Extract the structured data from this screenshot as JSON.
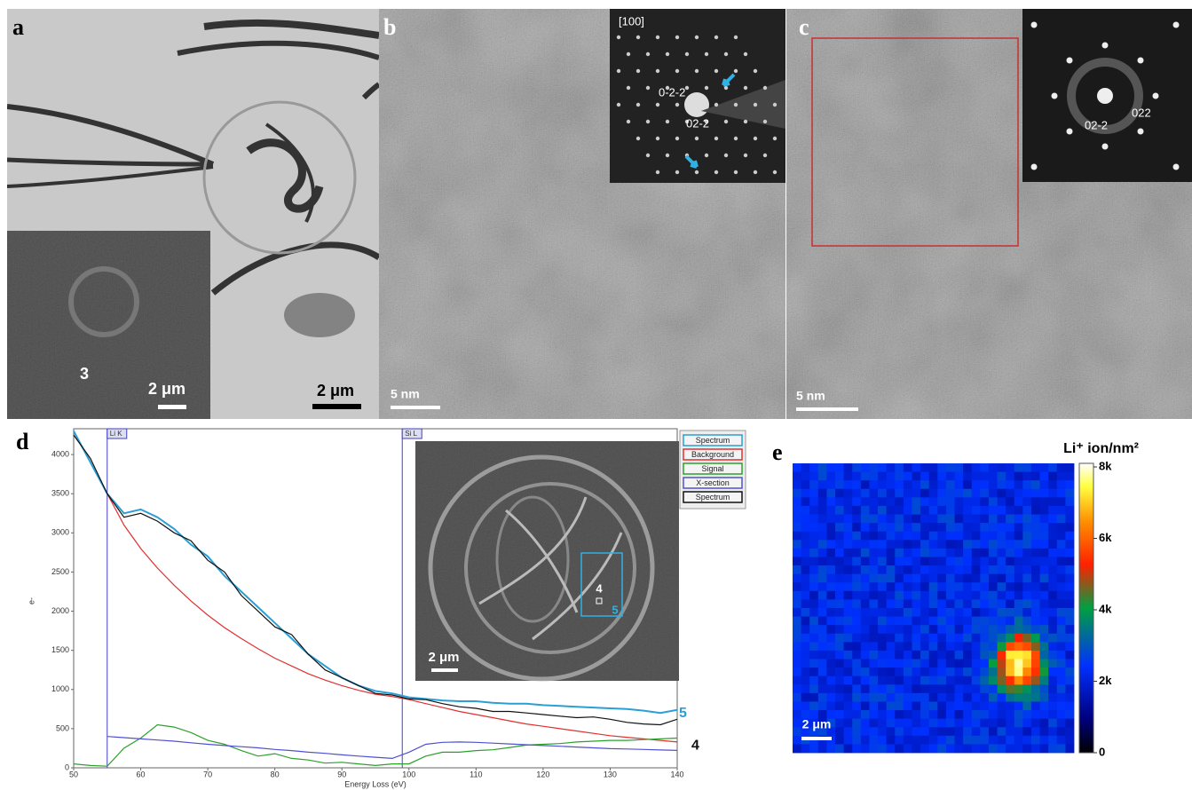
{
  "panel_labels": [
    "a",
    "b",
    "c",
    "d",
    "e"
  ],
  "panel_a": {
    "inset_number": "3",
    "inset_scale": "2 μm",
    "scale": "2 μm"
  },
  "panel_b": {
    "zone_axis": "[100]",
    "spots": [
      "0-2-2",
      "02-2"
    ],
    "scale": "5 nm"
  },
  "panel_c": {
    "spots": [
      "022",
      "02-2"
    ],
    "scale": "5 nm"
  },
  "chart_data": [
    {
      "type": "line",
      "xlabel": "Energy Loss (eV)",
      "ylabel": "e-",
      "xlim": [
        50,
        140
      ],
      "xticks": [
        50,
        60,
        70,
        80,
        90,
        100,
        110,
        120,
        130,
        140
      ],
      "ylim": [
        0,
        4330
      ],
      "yticks": [
        0,
        500,
        1000,
        1500,
        2000,
        2500,
        3000,
        3500,
        4000
      ],
      "edges": [
        {
          "label": "Li K",
          "x": 55
        },
        {
          "label": "Si L",
          "x": 99
        }
      ],
      "x": [
        50,
        52.5,
        55,
        57.5,
        60,
        62.5,
        65,
        67.5,
        70,
        72.5,
        75,
        77.5,
        80,
        82.5,
        85,
        87.5,
        90,
        92.5,
        95,
        97.5,
        100,
        102.5,
        105,
        107.5,
        110,
        112.5,
        115,
        117.5,
        120,
        122.5,
        125,
        127.5,
        130,
        132.5,
        135,
        137.5,
        140
      ],
      "series": [
        {
          "name": "Spectrum",
          "color": "#2a9fd6",
          "end_label": "5",
          "values": [
            4300,
            3900,
            3500,
            3250,
            3300,
            3200,
            3050,
            2850,
            2700,
            2450,
            2250,
            2050,
            1850,
            1650,
            1450,
            1300,
            1150,
            1050,
            980,
            950,
            900,
            880,
            860,
            850,
            850,
            830,
            820,
            820,
            800,
            790,
            780,
            770,
            760,
            750,
            730,
            700,
            740
          ]
        },
        {
          "name": "Background",
          "color": "#e03030",
          "values": [
            null,
            null,
            3500,
            3100,
            2800,
            2550,
            2330,
            2130,
            1950,
            1790,
            1650,
            1520,
            1400,
            1300,
            1200,
            1120,
            1050,
            990,
            940,
            910,
            870,
            820,
            770,
            720,
            680,
            640,
            600,
            560,
            530,
            500,
            470,
            440,
            410,
            390,
            370,
            350,
            330
          ]
        },
        {
          "name": "Signal",
          "color": "#2ca02c",
          "values": [
            50,
            30,
            20,
            250,
            380,
            550,
            520,
            450,
            350,
            300,
            220,
            150,
            180,
            120,
            100,
            60,
            70,
            50,
            30,
            50,
            50,
            150,
            200,
            200,
            220,
            230,
            260,
            290,
            300,
            310,
            330,
            340,
            350,
            350,
            360,
            370,
            380
          ]
        },
        {
          "name": "X-section",
          "color": "#5050d0",
          "values": [
            null,
            null,
            400,
            385,
            370,
            355,
            340,
            320,
            300,
            285,
            270,
            255,
            235,
            220,
            200,
            185,
            165,
            150,
            135,
            120,
            200,
            300,
            325,
            330,
            325,
            315,
            305,
            295,
            285,
            275,
            265,
            255,
            245,
            240,
            235,
            228,
            222
          ]
        },
        {
          "name": "Spectrum",
          "color": "#111111",
          "end_label": "4",
          "values": [
            4250,
            3950,
            3500,
            3200,
            3250,
            3150,
            3000,
            2900,
            2650,
            2500,
            2200,
            2000,
            1800,
            1700,
            1450,
            1250,
            1150,
            1050,
            950,
            930,
            880,
            870,
            820,
            780,
            760,
            720,
            720,
            700,
            680,
            660,
            640,
            650,
            620,
            580,
            560,
            550,
            620
          ]
        }
      ],
      "inset": {
        "labels": [
          "4",
          "5"
        ],
        "scale": "2 μm"
      }
    },
    {
      "type": "heatmap",
      "title": "Li⁺ ion/nm²",
      "scale": "2 μm",
      "zlim": [
        0,
        8100
      ],
      "zticks": [
        0,
        {
          "value": 2000,
          "label": "2k"
        },
        {
          "value": 4000,
          "label": "4k"
        },
        {
          "value": 6000,
          "label": "6k"
        },
        {
          "value": 8000,
          "label": "8k"
        }
      ]
    }
  ]
}
